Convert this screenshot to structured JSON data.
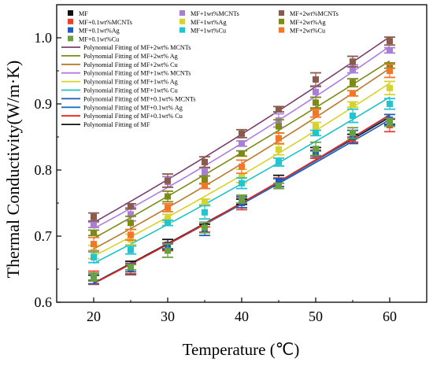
{
  "chart_data": {
    "type": "line",
    "title": "",
    "xlabel": "Temperature (℃)",
    "ylabel": "Thermal Conductivity(W/m·K)",
    "xlim": [
      15,
      65
    ],
    "ylim": [
      0.6,
      1.05
    ],
    "xticks": [
      "20",
      "30",
      "40",
      "50",
      "60"
    ],
    "yticks": [
      "0.6",
      "0.7",
      "0.8",
      "0.9",
      "1.0"
    ],
    "x": [
      20,
      25,
      30,
      35,
      40,
      45,
      50,
      55,
      60
    ],
    "legend_position": "top-left",
    "series": [
      {
        "name": "MF",
        "color": "#111111",
        "marker": "square",
        "values": [
          0.637,
          0.652,
          0.687,
          0.712,
          0.752,
          0.782,
          0.826,
          0.848,
          0.873
        ],
        "fit_name": "Polynomial Fitting of MF",
        "fit_color": "#111111"
      },
      {
        "name": "MF+0.1wt%MCNTs",
        "color": "#e8402b",
        "marker": "square",
        "values": [
          0.637,
          0.651,
          0.684,
          0.71,
          0.75,
          0.78,
          0.824,
          0.846,
          0.868
        ],
        "fit_name": "Polynomial Fitting of MF+0.1wt%MCNTs",
        "fit_color": "#1e58b8"
      },
      {
        "name": "MF+0.1wt%Ag",
        "color": "#1f5cc0",
        "marker": "square",
        "values": [
          0.636,
          0.652,
          0.685,
          0.711,
          0.751,
          0.781,
          0.825,
          0.85,
          0.876
        ],
        "fit_name": "Polynomial Fitting of MF+0.1wt%Ag",
        "fit_color": "#1c70c6"
      },
      {
        "name": "MF+0.1wt%Cu",
        "color": "#6aa043",
        "marker": "square",
        "values": [
          0.638,
          0.653,
          0.678,
          0.713,
          0.756,
          0.776,
          0.832,
          0.856,
          0.872
        ],
        "fit_name": "Polynomial Fitting of MF+0.1wt%Cu",
        "fit_color": "#e8231a"
      },
      {
        "name": "MF+1wt%MCNTs",
        "color": "#a97fd6",
        "marker": "square",
        "values": [
          0.717,
          0.733,
          0.782,
          0.797,
          0.84,
          0.875,
          0.918,
          0.953,
          0.981
        ],
        "fit_name": "Polynomial Fitting of MF+1wt%MCNTs",
        "fit_color": "#b07ee0"
      },
      {
        "name": "MF+1wt%Ag",
        "color": "#d6d233",
        "marker": "square",
        "values": [
          0.676,
          0.695,
          0.727,
          0.752,
          0.791,
          0.831,
          0.866,
          0.899,
          0.924
        ],
        "fit_name": "Polynomial Fitting of MF+1wt%Ag",
        "fit_color": "#d8d22c"
      },
      {
        "name": "MF+1wt%Cu",
        "color": "#21c4cf",
        "marker": "square",
        "values": [
          0.668,
          0.679,
          0.72,
          0.736,
          0.78,
          0.812,
          0.856,
          0.882,
          0.9
        ],
        "fit_name": "Polynomial Fitting of MF+1wt%Cu",
        "fit_color": "#1fc2c2"
      },
      {
        "name": "MF+2wt%MCNTs",
        "color": "#8a5a4c",
        "marker": "square",
        "values": [
          0.729,
          0.745,
          0.784,
          0.812,
          0.855,
          0.892,
          0.937,
          0.964,
          0.995
        ],
        "fit_name": "Polynomial Fitting of MF+2wt%MCNTs",
        "fit_color": "#7b3f6f"
      },
      {
        "name": "MF+2wt%Ag",
        "color": "#7d8a18",
        "marker": "square",
        "values": [
          0.705,
          0.72,
          0.76,
          0.785,
          0.825,
          0.866,
          0.902,
          0.932,
          0.958
        ],
        "fit_name": "Polynomial Fitting of MF+2wt% Ag",
        "fit_color": "#7d8a18"
      },
      {
        "name": "MF+2wt%Cu",
        "color": "#f2772a",
        "marker": "square",
        "values": [
          0.688,
          0.702,
          0.743,
          0.776,
          0.805,
          0.848,
          0.886,
          0.916,
          0.95
        ],
        "fit_name": "Polynomial Fitting of MF+2wt% Cu",
        "fit_color": "#b87a2a"
      }
    ],
    "legend_markers": [
      "MF",
      "MF+0.1wt%MCNTs",
      "MF+0.1wt%Ag",
      "MF+0.1wt%Cu",
      "MF+1wt%MCNTs",
      "MF+1wt%Ag",
      "MF+1wt%Cu",
      "MF+2wt%MCNTs",
      "MF+2wt%Ag",
      "MF+2wt%Cu"
    ],
    "legend_fits": [
      {
        "name": "Polynomial Fitting of  MF+2wt% MCNTs",
        "color": "#7b3f6f"
      },
      {
        "name": "Polynomial Fitting of  MF+2wt% Ag",
        "color": "#7d8a18"
      },
      {
        "name": "Polynomial Fitting of  MF+2wt% Cu",
        "color": "#b87a2a"
      },
      {
        "name": "Polynomial Fitting of  MF+1wt% MCNTs",
        "color": "#b07ee0"
      },
      {
        "name": "Polynomial Fitting of  MF+1wt% Ag",
        "color": "#d8d22c"
      },
      {
        "name": "Polynomial Fitting of  MF+1wt% Cu",
        "color": "#1fc2c2"
      },
      {
        "name": "Polynomial Fitting of  MF+0.1wt% MCNTs",
        "color": "#1e58b8"
      },
      {
        "name": "Polynomial Fitting of  MF+0.1wt% Ag",
        "color": "#1c70c6"
      },
      {
        "name": "Polynomial Fitting of  MF+0.1wt% Cu",
        "color": "#e8231a"
      },
      {
        "name": "Polynomial Fitting of  MF",
        "color": "#111111"
      }
    ]
  }
}
